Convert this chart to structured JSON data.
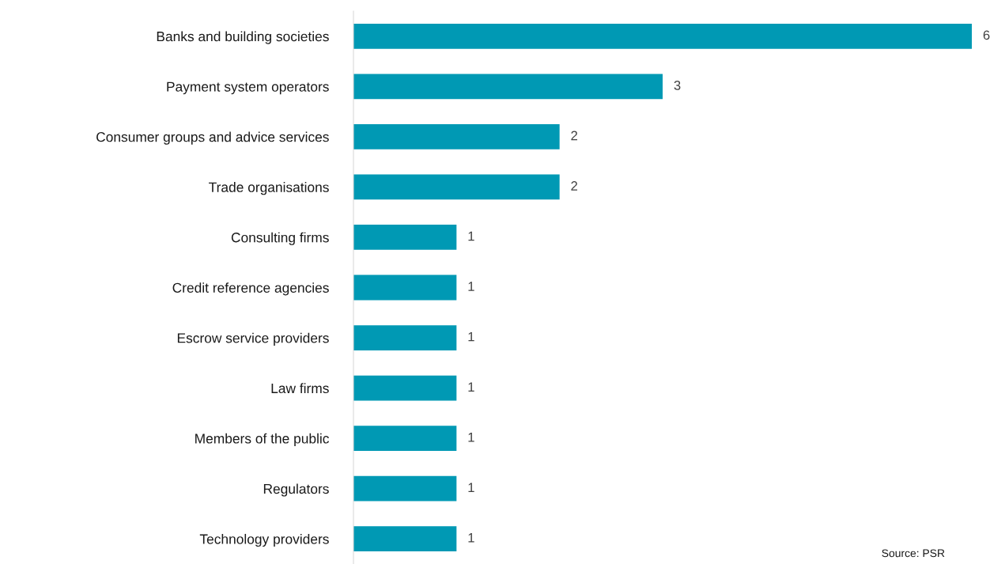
{
  "chart_data": {
    "type": "bar",
    "orientation": "horizontal",
    "categories": [
      "Banks and building societies",
      "Payment system operators",
      "Consumer groups and advice services",
      "Trade organisations",
      "Consulting firms",
      "Credit reference agencies",
      "Escrow service providers",
      "Law firms",
      "Members of the public",
      "Regulators",
      "Technology providers"
    ],
    "values": [
      6,
      3,
      2,
      2,
      1,
      1,
      1,
      1,
      1,
      1,
      1
    ],
    "color": "#0099b4",
    "data_labels": true,
    "tick_labels": "y",
    "grid": false,
    "legend": false,
    "annotations": [
      "Source: PSR"
    ]
  }
}
